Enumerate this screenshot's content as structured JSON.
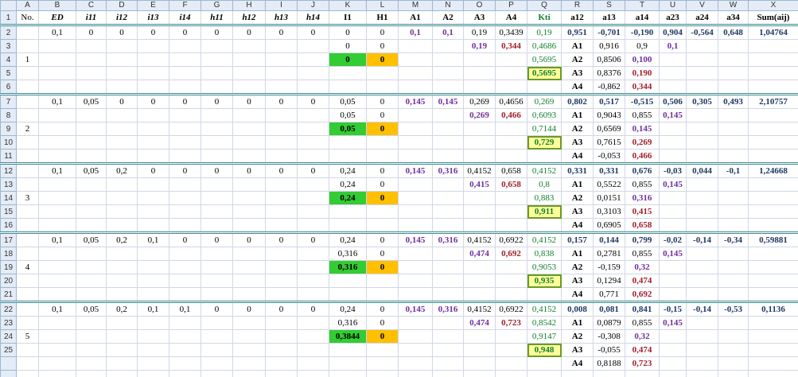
{
  "column_headers": [
    "A",
    "B",
    "C",
    "D",
    "E",
    "F",
    "G",
    "H",
    "I",
    "J",
    "K",
    "L",
    "M",
    "N",
    "O",
    "P",
    "Q",
    "R",
    "S",
    "T",
    "U",
    "V",
    "W",
    "X"
  ],
  "rows": [
    {
      "n": "1",
      "cells": [
        "No.",
        "ED",
        "i11",
        "i12",
        "i13",
        "i14",
        "h11",
        "h12",
        "h13",
        "h14",
        "I1",
        "H1",
        "A1",
        "A2",
        "A3",
        "A4",
        "Kti",
        "a12",
        "a13",
        "a14",
        "a23",
        "a24",
        "a34",
        "Sum(aij)"
      ]
    },
    {
      "n": "2",
      "cells": [
        null,
        "0,1",
        "0",
        "0",
        "0",
        "0",
        "0",
        "0",
        "0",
        "0",
        "0",
        "0",
        "0,1",
        "0,1",
        "0,19",
        "0,3439",
        "0,19",
        "0,951",
        "-0,701",
        "-0,190",
        "0,904",
        "-0,564",
        "0,648",
        "1,04764"
      ]
    },
    {
      "n": "3",
      "cells": [
        null,
        null,
        null,
        null,
        null,
        null,
        null,
        null,
        null,
        null,
        "0",
        "0",
        null,
        null,
        "0,19",
        "0,344",
        "0,4686",
        "A1",
        "0,916",
        "0,9",
        "0,1",
        null,
        null,
        null
      ]
    },
    {
      "n": "4",
      "cells": [
        "1",
        null,
        null,
        null,
        null,
        null,
        null,
        null,
        null,
        null,
        "0",
        "0",
        null,
        null,
        null,
        null,
        "0,5695",
        "A2",
        "0,8506",
        "0,100",
        null,
        null,
        null,
        null
      ]
    },
    {
      "n": "5",
      "cells": [
        null,
        null,
        null,
        null,
        null,
        null,
        null,
        null,
        null,
        null,
        null,
        null,
        null,
        null,
        null,
        null,
        "0,5695",
        "A3",
        "0,8376",
        "0,190",
        null,
        null,
        null,
        null
      ]
    },
    {
      "n": "6",
      "cells": [
        null,
        null,
        null,
        null,
        null,
        null,
        null,
        null,
        null,
        null,
        null,
        null,
        null,
        null,
        null,
        null,
        null,
        "A4",
        "-0,862",
        "0,344",
        null,
        null,
        null,
        null
      ]
    },
    {
      "n": "7",
      "cells": [
        null,
        "0,1",
        "0,05",
        "0",
        "0",
        "0",
        "0",
        "0",
        "0",
        "0",
        "0,05",
        "0",
        "0,145",
        "0,145",
        "0,269",
        "0,4656",
        "0,269",
        "0,802",
        "0,517",
        "-0,515",
        "0,506",
        "0,305",
        "0,493",
        "2,10757"
      ]
    },
    {
      "n": "8",
      "cells": [
        null,
        null,
        null,
        null,
        null,
        null,
        null,
        null,
        null,
        null,
        "0,05",
        "0",
        null,
        null,
        "0,269",
        "0,466",
        "0,6093",
        "A1",
        "0,9043",
        "0,855",
        "0,145",
        null,
        null,
        null
      ]
    },
    {
      "n": "9",
      "cells": [
        "2",
        null,
        null,
        null,
        null,
        null,
        null,
        null,
        null,
        null,
        "0,05",
        "0",
        null,
        null,
        null,
        null,
        "0,7144",
        "A2",
        "0,6569",
        "0,145",
        null,
        null,
        null,
        null
      ]
    },
    {
      "n": "10",
      "cells": [
        null,
        null,
        null,
        null,
        null,
        null,
        null,
        null,
        null,
        null,
        null,
        null,
        null,
        null,
        null,
        null,
        "0,729",
        "A3",
        "0,7615",
        "0,269",
        null,
        null,
        null,
        null
      ]
    },
    {
      "n": "11",
      "cells": [
        null,
        null,
        null,
        null,
        null,
        null,
        null,
        null,
        null,
        null,
        null,
        null,
        null,
        null,
        null,
        null,
        null,
        "A4",
        "-0,053",
        "0,466",
        null,
        null,
        null,
        null
      ]
    },
    {
      "n": "12",
      "cells": [
        null,
        "0,1",
        "0,05",
        "0,2",
        "0",
        "0",
        "0",
        "0",
        "0",
        "0",
        "0,24",
        "0",
        "0,145",
        "0,316",
        "0,4152",
        "0,658",
        "0,4152",
        "0,331",
        "0,331",
        "0,676",
        "-0,03",
        "0,044",
        "-0,1",
        "1,24668"
      ]
    },
    {
      "n": "13",
      "cells": [
        null,
        null,
        null,
        null,
        null,
        null,
        null,
        null,
        null,
        null,
        "0,24",
        "0",
        null,
        null,
        "0,415",
        "0,658",
        "0,8",
        "A1",
        "0,5522",
        "0,855",
        "0,145",
        null,
        null,
        null
      ]
    },
    {
      "n": "14",
      "cells": [
        "3",
        null,
        null,
        null,
        null,
        null,
        null,
        null,
        null,
        null,
        "0,24",
        "0",
        null,
        null,
        null,
        null,
        "0,883",
        "A2",
        "0,0151",
        "0,316",
        null,
        null,
        null,
        null
      ]
    },
    {
      "n": "15",
      "cells": [
        null,
        null,
        null,
        null,
        null,
        null,
        null,
        null,
        null,
        null,
        null,
        null,
        null,
        null,
        null,
        null,
        "0,911",
        "A3",
        "0,3103",
        "0,415",
        null,
        null,
        null,
        null
      ]
    },
    {
      "n": "16",
      "cells": [
        null,
        null,
        null,
        null,
        null,
        null,
        null,
        null,
        null,
        null,
        null,
        null,
        null,
        null,
        null,
        null,
        null,
        "A4",
        "0,6905",
        "0,658",
        null,
        null,
        null,
        null
      ]
    },
    {
      "n": "17",
      "cells": [
        null,
        "0,1",
        "0,05",
        "0,2",
        "0,1",
        "0",
        "0",
        "0",
        "0",
        "0",
        "0,24",
        "0",
        "0,145",
        "0,316",
        "0,4152",
        "0,6922",
        "0,4152",
        "0,157",
        "0,144",
        "0,799",
        "-0,02",
        "-0,14",
        "-0,34",
        "0,59881"
      ]
    },
    {
      "n": "18",
      "cells": [
        null,
        null,
        null,
        null,
        null,
        null,
        null,
        null,
        null,
        null,
        "0,316",
        "0",
        null,
        null,
        "0,474",
        "0,692",
        "0,838",
        "A1",
        "0,2781",
        "0,855",
        "0,145",
        null,
        null,
        null
      ]
    },
    {
      "n": "19",
      "cells": [
        "4",
        null,
        null,
        null,
        null,
        null,
        null,
        null,
        null,
        null,
        "0,316",
        "0",
        null,
        null,
        null,
        null,
        "0,9053",
        "A2",
        "-0,159",
        "0,32",
        null,
        null,
        null,
        null
      ]
    },
    {
      "n": "20",
      "cells": [
        null,
        null,
        null,
        null,
        null,
        null,
        null,
        null,
        null,
        null,
        null,
        null,
        null,
        null,
        null,
        null,
        "0,935",
        "A3",
        "0,1294",
        "0,474",
        null,
        null,
        null,
        null
      ]
    },
    {
      "n": "21",
      "cells": [
        null,
        null,
        null,
        null,
        null,
        null,
        null,
        null,
        null,
        null,
        null,
        null,
        null,
        null,
        null,
        null,
        null,
        "A4",
        "0,771",
        "0,692",
        null,
        null,
        null,
        null
      ]
    },
    {
      "n": "22",
      "cells": [
        null,
        "0,1",
        "0,05",
        "0,2",
        "0,1",
        "0,1",
        "0",
        "0",
        "0",
        "0",
        "0,24",
        "0",
        "0,145",
        "0,316",
        "0,4152",
        "0,6922",
        "0,4152",
        "0,008",
        "0,081",
        "0,841",
        "-0,15",
        "-0,14",
        "-0,53",
        "0,1136"
      ]
    },
    {
      "n": "23",
      "cells": [
        null,
        null,
        null,
        null,
        null,
        null,
        null,
        null,
        null,
        null,
        "0,316",
        "0",
        null,
        null,
        "0,474",
        "0,723",
        "0,8542",
        "A1",
        "0,0879",
        "0,855",
        "0,145",
        null,
        null,
        null
      ]
    },
    {
      "n": "24",
      "cells": [
        "5",
        null,
        null,
        null,
        null,
        null,
        null,
        null,
        null,
        null,
        "0,3844",
        "0",
        null,
        null,
        null,
        null,
        "0,9147",
        "A2",
        "-0,308",
        "0,32",
        null,
        null,
        null,
        null
      ]
    },
    {
      "n": "25",
      "cells": [
        null,
        null,
        null,
        null,
        null,
        null,
        null,
        null,
        null,
        null,
        null,
        null,
        null,
        null,
        null,
        null,
        "0,948",
        "A3",
        "-0,055",
        "0,474",
        null,
        null,
        null,
        null
      ]
    },
    {
      "n": null,
      "cells": [
        null,
        null,
        null,
        null,
        null,
        null,
        null,
        null,
        null,
        null,
        null,
        null,
        null,
        null,
        null,
        null,
        null,
        "A4",
        "0,8188",
        "0,723",
        null,
        null,
        null,
        null
      ]
    }
  ]
}
